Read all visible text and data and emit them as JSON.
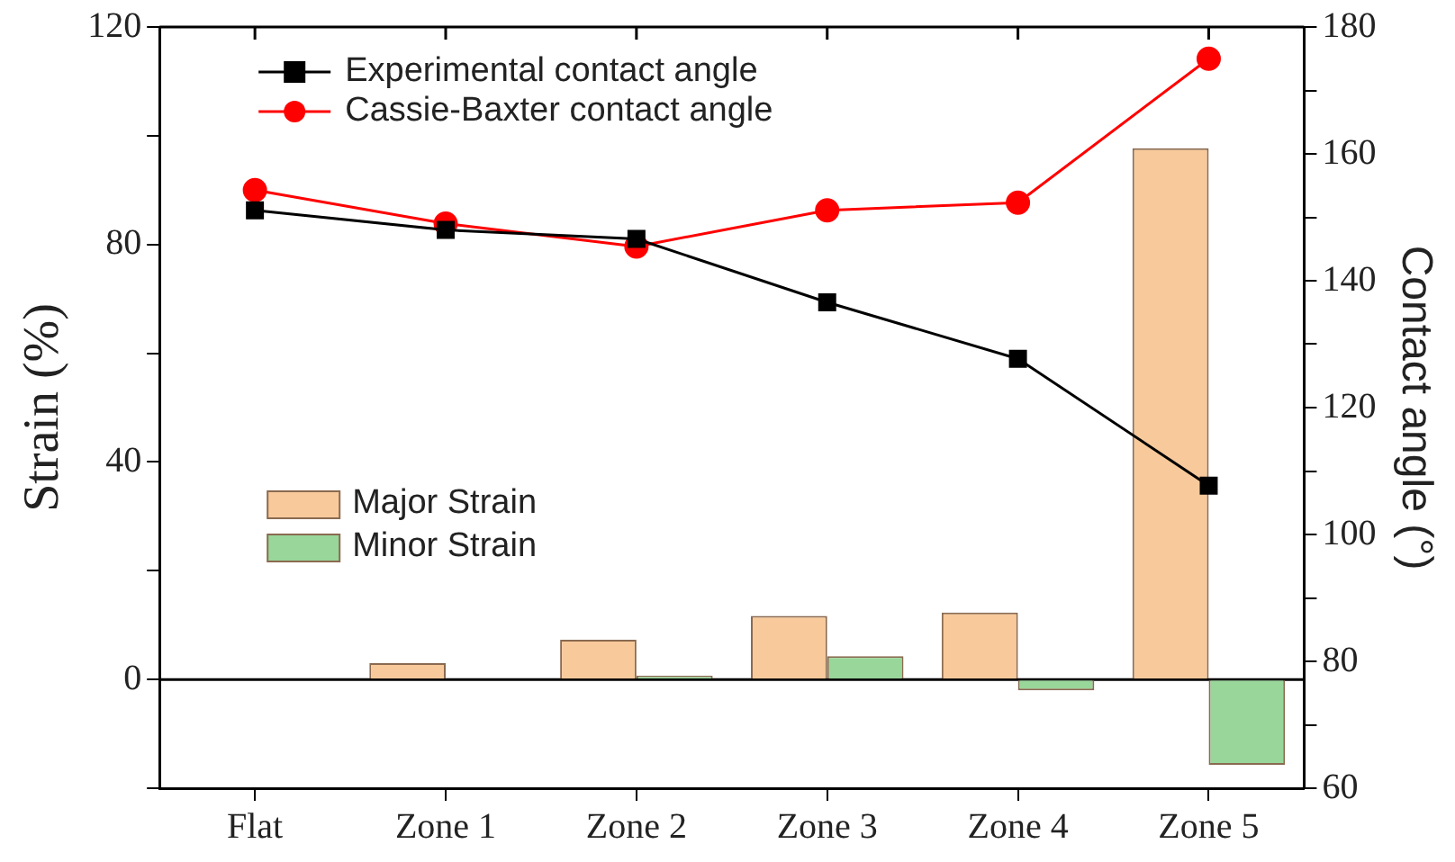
{
  "chart_data": {
    "type": "bar",
    "ylabel": "Strain (%)",
    "y2label": "Contact angle (°)",
    "categories": [
      "Flat",
      "Zone 1",
      "Zone 2",
      "Zone 3",
      "Zone 4",
      "Zone 5"
    ],
    "series": [
      {
        "name": "Major Strain",
        "color": "#f8c99a",
        "values": [
          0,
          3,
          7.3,
          11.7,
          12.3,
          97.7
        ]
      },
      {
        "name": "Minor Strain",
        "color": "#98d69a",
        "values": [
          0,
          0,
          0.7,
          4.3,
          -2,
          -15.7
        ]
      },
      {
        "name": "Experimental contact angle",
        "type": "line",
        "axis": "y2",
        "color": "#000000",
        "marker": "square",
        "values": [
          151.1,
          148,
          146.6,
          136.6,
          127.7,
          107.7
        ]
      },
      {
        "name": "Cassie-Baxter contact angle",
        "type": "line",
        "axis": "y2",
        "color": "#ff0000",
        "marker": "circle",
        "values": [
          154.3,
          149,
          145.4,
          151.1,
          152.3,
          175
        ]
      }
    ],
    "ylim": [
      -20,
      120
    ],
    "yticks": [
      {
        "value": -20,
        "label": null
      },
      0,
      {
        "value": 20,
        "label": null
      },
      40,
      {
        "value": 60,
        "label": null
      },
      80,
      {
        "value": 100,
        "label": null
      },
      120
    ],
    "y2lim": [
      60,
      180
    ],
    "y2ticks": [
      60,
      {
        "value": 70,
        "label": null
      },
      80,
      {
        "value": 90,
        "label": null
      },
      100,
      {
        "value": 110,
        "label": null
      },
      120,
      {
        "value": 130,
        "label": null
      },
      140,
      {
        "value": 150,
        "label": null
      },
      160,
      {
        "value": 170,
        "label": null
      },
      180
    ],
    "ref_lines": [
      {
        "axis": "y",
        "value": 0,
        "color": "#000000"
      }
    ],
    "grid": false,
    "legend": "top left"
  }
}
